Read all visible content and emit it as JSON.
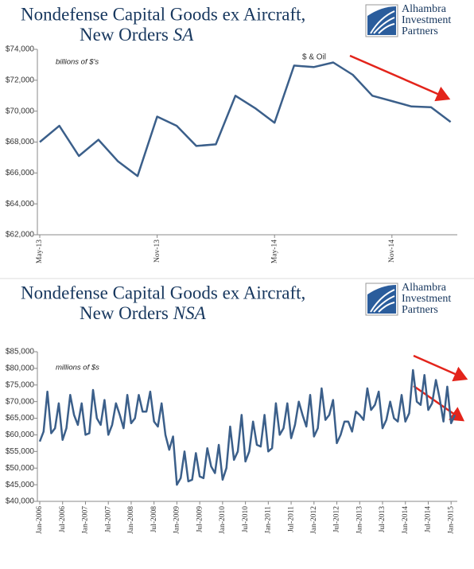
{
  "chart_data": [
    {
      "type": "line",
      "title": [
        "Nondefense  Capital Goods ex Aircraft,",
        "New Orders"
      ],
      "title_italic": "SA",
      "logo": [
        "Alhambra",
        "Investment",
        "Partners"
      ],
      "annotations": [
        "billions of $'s",
        "$ & Oil"
      ],
      "categories": [
        "May-13",
        null,
        null,
        null,
        null,
        null,
        "Nov-13",
        null,
        null,
        null,
        null,
        null,
        "May-14",
        null,
        null,
        null,
        null,
        null,
        "Nov-14",
        null,
        null,
        null
      ],
      "values": [
        68000,
        69050,
        67100,
        68150,
        66750,
        65800,
        69650,
        69050,
        67750,
        67850,
        71000,
        70200,
        69250,
        72950,
        72850,
        73150,
        72350,
        71000,
        70650,
        70300,
        70250,
        69300
      ],
      "color": "#3b5f8a",
      "ylim": [
        62000,
        74000
      ],
      "yticks": [
        {
          "value": 62000,
          "label": "$62,000"
        },
        {
          "value": 64000,
          "label": "$64,000"
        },
        {
          "value": 66000,
          "label": "$66,000"
        },
        {
          "value": 68000,
          "label": "$68,000"
        },
        {
          "value": 70000,
          "label": "$70,000"
        },
        {
          "value": 72000,
          "label": "$72,000"
        },
        {
          "value": 74000,
          "label": "$74,000"
        }
      ],
      "grid": false
    },
    {
      "type": "line",
      "title": [
        "Nondefense  Capital Goods ex Aircraft,",
        "New Orders"
      ],
      "title_italic": "NSA",
      "logo": [
        "Alhambra",
        "Investment",
        "Partners"
      ],
      "annotations": [
        "millions of $s"
      ],
      "categories": [
        "Jan-2006",
        null,
        null,
        null,
        null,
        null,
        "Jul-2006",
        null,
        null,
        null,
        null,
        null,
        "Jan-2007",
        null,
        null,
        null,
        null,
        null,
        "Jul-2007",
        null,
        null,
        null,
        null,
        null,
        "Jan-2008",
        null,
        null,
        null,
        null,
        null,
        "Jul-2008",
        null,
        null,
        null,
        null,
        null,
        "Jan-2009",
        null,
        null,
        null,
        null,
        null,
        "Jul-2009",
        null,
        null,
        null,
        null,
        null,
        "Jan-2010",
        null,
        null,
        null,
        null,
        null,
        "Jul-2010",
        null,
        null,
        null,
        null,
        null,
        "Jan-2011",
        null,
        null,
        null,
        null,
        null,
        "Jul-2011",
        null,
        null,
        null,
        null,
        null,
        "Jan-2012",
        null,
        null,
        null,
        null,
        null,
        "Jul-2012",
        null,
        null,
        null,
        null,
        null,
        "Jan-2013",
        null,
        null,
        null,
        null,
        null,
        "Jul-2013",
        null,
        null,
        null,
        null,
        null,
        "Jan-2014",
        null,
        null,
        null,
        null,
        null,
        "Jul-2014",
        null,
        null,
        null,
        null,
        null,
        "Jan-2015",
        null
      ],
      "values": [
        58000,
        61000,
        73000,
        60500,
        62000,
        69500,
        58500,
        62000,
        72000,
        66000,
        63000,
        69500,
        60000,
        60500,
        73500,
        65000,
        63000,
        70500,
        60000,
        63000,
        69500,
        66000,
        62000,
        72000,
        63500,
        65000,
        72000,
        67000,
        67000,
        73000,
        64000,
        62500,
        69500,
        60000,
        55500,
        59500,
        45000,
        47000,
        55000,
        46000,
        46500,
        54500,
        47500,
        47000,
        56000,
        50500,
        48500,
        57000,
        46500,
        50000,
        62500,
        52500,
        55000,
        66000,
        52000,
        55000,
        64000,
        57000,
        56500,
        66000,
        55000,
        56000,
        69500,
        60000,
        62000,
        69500,
        59000,
        63000,
        70000,
        66000,
        62500,
        72000,
        59500,
        62000,
        74000,
        64500,
        66000,
        70500,
        57500,
        60000,
        64000,
        64000,
        61000,
        67000,
        66000,
        64500,
        74000,
        67500,
        69000,
        73000,
        62000,
        64500,
        70000,
        65000,
        64000,
        72000,
        64000,
        66500,
        79500,
        70000,
        69000,
        78000,
        67500,
        69500,
        76500,
        71000,
        64000,
        74500,
        63500,
        66000
      ],
      "color": "#3b5f8a",
      "ylim": [
        40000,
        85000
      ],
      "yticks": [
        {
          "value": 40000,
          "label": "$40,000"
        },
        {
          "value": 45000,
          "label": "$45,000"
        },
        {
          "value": 50000,
          "label": "$50,000"
        },
        {
          "value": 55000,
          "label": "$55,000"
        },
        {
          "value": 60000,
          "label": "$60,000"
        },
        {
          "value": 65000,
          "label": "$65,000"
        },
        {
          "value": 70000,
          "label": "$70,000"
        },
        {
          "value": 75000,
          "label": "$75,000"
        },
        {
          "value": 80000,
          "label": "$80,000"
        },
        {
          "value": 85000,
          "label": "$85,000"
        }
      ],
      "grid": false
    }
  ]
}
